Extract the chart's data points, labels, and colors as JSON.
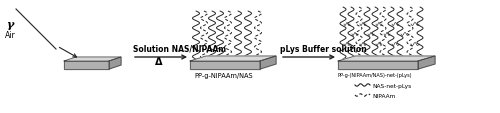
{
  "bg_color": "#ffffff",
  "fig_width": 5.0,
  "fig_height": 1.14,
  "dpi": 100,
  "gamma_label": "γ",
  "air_label": "Air",
  "arrow1_label_top": "Solution NAS/NIPAAm",
  "arrow1_label_bottom": "Δ",
  "arrow2_label": "pLys Buffer solution",
  "pp_label": "PP-g-NIPAAm/NAS",
  "pp2_label": "PP-g-(NIPAAm/NAS)-net-(pLys)",
  "legend1": "NAS-net-pLys",
  "legend2": "NIPAAm",
  "plate_color": "#b0b0b0",
  "plate_top_color": "#d8d8d8",
  "plate_edge_color": "#444444",
  "line_color": "#222222",
  "text_color": "#000000",
  "fs_arrow": 5.5,
  "fs_delta": 7.0,
  "fs_label": 4.8,
  "fs_pp2": 3.6,
  "fs_legend": 4.2
}
